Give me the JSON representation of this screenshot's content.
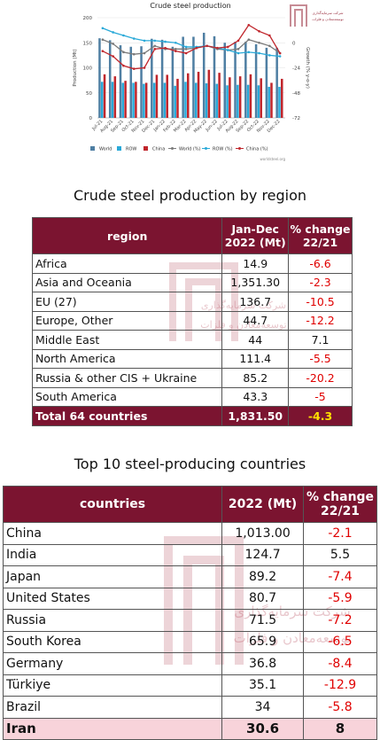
{
  "chart_data": {
    "type": "bar",
    "title": "Crude steel production",
    "categories": [
      "Jul-21",
      "Aug-21",
      "Sep-21",
      "Oct-21",
      "Nov-21",
      "Dec-21",
      "Jan-22",
      "Feb-22",
      "Mar-22",
      "Apr-22",
      "May-22",
      "Jun-22",
      "Jul-22",
      "Aug-22",
      "Sep-22",
      "Oct-22",
      "Nov-22",
      "Dec-22"
    ],
    "ylabel": "Production (Mt)",
    "y2label": "Growth (% y-o-y)",
    "ylim": [
      0,
      200
    ],
    "y2lim": [
      -72,
      24
    ],
    "yticks": [
      0,
      50,
      100,
      150,
      200
    ],
    "y2ticks": [
      0,
      -24,
      -48,
      -72
    ],
    "series": [
      {
        "name": "World",
        "kind": "bar",
        "color": "#4f7fa3",
        "values": [
          159,
          155,
          145,
          142,
          143,
          158,
          156,
          142,
          162,
          162,
          170,
          163,
          150,
          152,
          152,
          147,
          140,
          140
        ]
      },
      {
        "name": "ROW",
        "kind": "bar",
        "color": "#29a9d8",
        "values": [
          72,
          72,
          70,
          70,
          68,
          70,
          70,
          64,
          72,
          70,
          69,
          68,
          65,
          66,
          66,
          65,
          62,
          62
        ]
      },
      {
        "name": "China",
        "kind": "bar",
        "color": "#c0262c",
        "values": [
          87,
          83,
          74,
          72,
          70,
          86,
          86,
          78,
          89,
          92,
          96,
          90,
          81,
          83,
          87,
          79,
          70,
          78
        ]
      },
      {
        "name": "World (%)",
        "kind": "line",
        "color": "#7a7a7a",
        "values": [
          3,
          -1,
          -9,
          -11,
          -10,
          -3,
          -6,
          -6,
          -6,
          -5,
          -3,
          -6,
          -7,
          -6,
          3,
          0,
          -3,
          -10
        ]
      },
      {
        "name": "ROW (%)",
        "kind": "line",
        "color": "#29a9d8",
        "values": [
          14,
          10,
          7,
          4,
          2,
          2,
          1,
          0,
          -4,
          -4,
          -3,
          -5,
          -7,
          -10,
          -9,
          -10,
          -12,
          -13
        ]
      },
      {
        "name": "China (%)",
        "kind": "line",
        "color": "#c0262c",
        "values": [
          -8,
          -13,
          -22,
          -25,
          -24,
          -6,
          -5,
          -8,
          -10,
          -5,
          -3,
          -5,
          -4,
          2,
          17,
          11,
          7,
          -10
        ]
      }
    ],
    "source": "worldsteel.org"
  },
  "region_section": {
    "title": "Crude steel production by region",
    "headers": {
      "region": "region",
      "value": "Jan-Dec 2022 (Mt)",
      "change": "% change 22/21"
    },
    "rows": [
      {
        "name": "Africa",
        "value": "14.9",
        "change": "-6.6"
      },
      {
        "name": "Asia and Oceania",
        "value": "1,351.30",
        "change": "-2.3"
      },
      {
        "name": "EU (27)",
        "value": "136.7",
        "change": "-10.5"
      },
      {
        "name": "Europe, Other",
        "value": "44.7",
        "change": "-12.2"
      },
      {
        "name": "Middle East",
        "value": "44",
        "change": "7.1"
      },
      {
        "name": "North America",
        "value": "111.4",
        "change": "-5.5"
      },
      {
        "name": "Russia & other CIS + Ukraine",
        "value": "85.2",
        "change": "-20.2"
      },
      {
        "name": "South America",
        "value": "43.3",
        "change": "-5"
      }
    ],
    "total": {
      "name": "Total 64 countries",
      "value": "1,831.50",
      "change": "-4.3"
    }
  },
  "country_section": {
    "title": "Top 10 steel-producing countries",
    "headers": {
      "country": "countries",
      "value": "2022 (Mt)",
      "change": "% change 22/21"
    },
    "rows": [
      {
        "name": "China",
        "value": "1,013.00",
        "change": "-2.1"
      },
      {
        "name": "India",
        "value": "124.7",
        "change": "5.5"
      },
      {
        "name": "Japan",
        "value": "89.2",
        "change": "-7.4"
      },
      {
        "name": "United States",
        "value": "80.7",
        "change": "-5.9"
      },
      {
        "name": "Russia",
        "value": "71.5",
        "change": "-7.2"
      },
      {
        "name": "South Korea",
        "value": "65.9",
        "change": "-6.5"
      },
      {
        "name": "Germany",
        "value": "36.8",
        "change": "-8.4"
      },
      {
        "name": "Türkiye",
        "value": "35.1",
        "change": "-12.9"
      },
      {
        "name": "Brazil",
        "value": "34",
        "change": "-5.8"
      }
    ],
    "highlight": {
      "name": "Iran",
      "value": "30.6",
      "change": "8"
    }
  },
  "watermark": {
    "line1": "شرکت سرمایه‌گذاری",
    "line2": "توسعه‌معادن و فلزات"
  },
  "colors": {
    "header_bg": "#7b1430",
    "negative": "#e00000",
    "total_change": "#ffe000",
    "highlight_bg": "#f8d3da"
  }
}
